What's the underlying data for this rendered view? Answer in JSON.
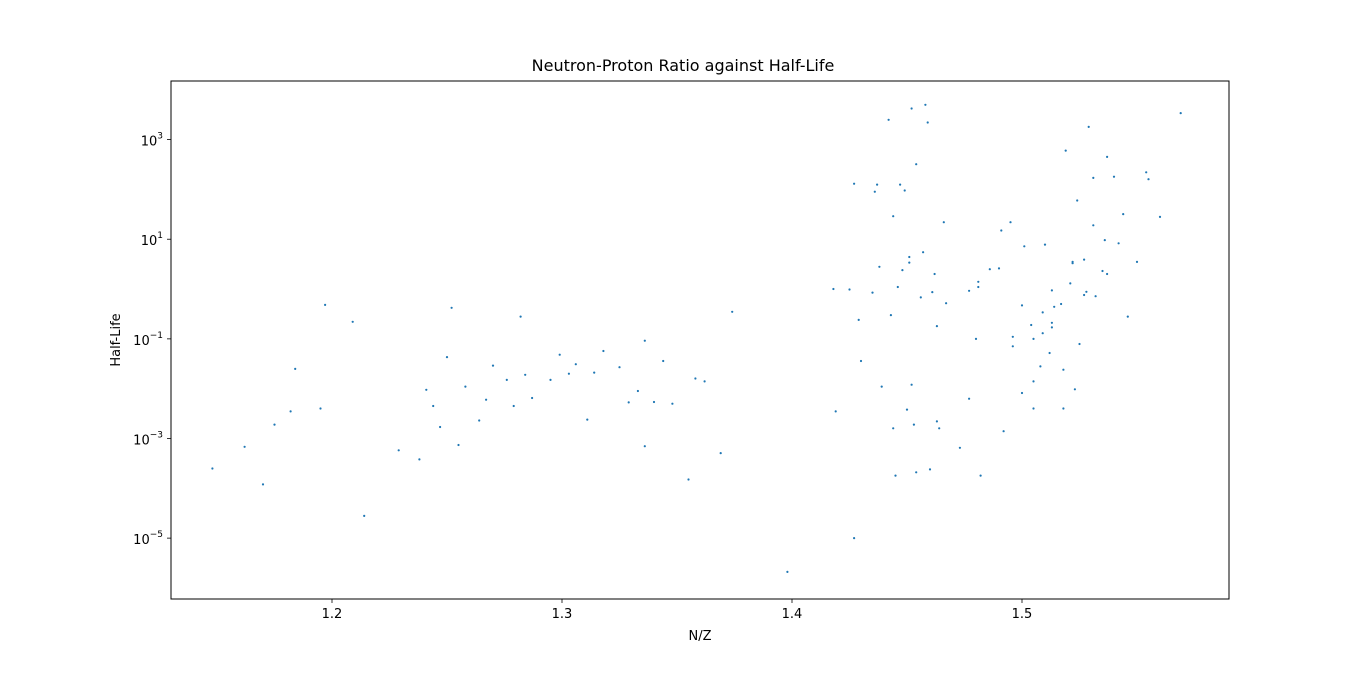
{
  "chart_data": {
    "type": "scatter",
    "title": "Neutron-Proton Ratio against Half-Life",
    "xlabel": "N/Z",
    "ylabel": "Half-Life",
    "xlim": [
      1.13,
      1.59
    ],
    "ylim": [
      6e-07,
      15000
    ],
    "y_scale": "log",
    "grid": false,
    "x_ticks": [
      {
        "value": 1.2,
        "label": "1.2"
      },
      {
        "value": 1.3,
        "label": "1.3"
      },
      {
        "value": 1.4,
        "label": "1.4"
      },
      {
        "value": 1.5,
        "label": "1.5"
      }
    ],
    "y_ticks": [
      {
        "value": 1e-05,
        "base": "10",
        "exp": "−5"
      },
      {
        "value": 0.001,
        "base": "10",
        "exp": "−3"
      },
      {
        "value": 0.1,
        "base": "10",
        "exp": "−1"
      },
      {
        "value": 10,
        "base": "10",
        "exp": "1"
      },
      {
        "value": 1000,
        "base": "10",
        "exp": "3"
      }
    ],
    "marker_color": "#1f77b4",
    "points": [
      [
        1.148,
        0.00025
      ],
      [
        1.162,
        0.00068
      ],
      [
        1.17,
        0.00012
      ],
      [
        1.175,
        0.0019
      ],
      [
        1.182,
        0.0035
      ],
      [
        1.184,
        0.025
      ],
      [
        1.195,
        0.004
      ],
      [
        1.197,
        0.48
      ],
      [
        1.209,
        0.22
      ],
      [
        1.214,
        2.8e-05
      ],
      [
        1.229,
        0.00058
      ],
      [
        1.238,
        0.00038
      ],
      [
        1.241,
        0.0095
      ],
      [
        1.244,
        0.0045
      ],
      [
        1.247,
        0.0017
      ],
      [
        1.25,
        0.043
      ],
      [
        1.252,
        0.42
      ],
      [
        1.255,
        0.00074
      ],
      [
        1.258,
        0.011
      ],
      [
        1.264,
        0.0023
      ],
      [
        1.267,
        0.006
      ],
      [
        1.27,
        0.029
      ],
      [
        1.276,
        0.015
      ],
      [
        1.279,
        0.0045
      ],
      [
        1.282,
        0.28
      ],
      [
        1.284,
        0.019
      ],
      [
        1.287,
        0.0065
      ],
      [
        1.295,
        0.015
      ],
      [
        1.299,
        0.048
      ],
      [
        1.303,
        0.02
      ],
      [
        1.306,
        0.031
      ],
      [
        1.311,
        0.0024
      ],
      [
        1.314,
        0.021
      ],
      [
        1.318,
        0.057
      ],
      [
        1.325,
        0.027
      ],
      [
        1.329,
        0.0053
      ],
      [
        1.333,
        0.009
      ],
      [
        1.336,
        0.0007
      ],
      [
        1.336,
        0.092
      ],
      [
        1.34,
        0.0054
      ],
      [
        1.344,
        0.036
      ],
      [
        1.348,
        0.005
      ],
      [
        1.355,
        0.00015
      ],
      [
        1.358,
        0.016
      ],
      [
        1.362,
        0.014
      ],
      [
        1.369,
        0.00051
      ],
      [
        1.374,
        0.35
      ],
      [
        1.398,
        2.1e-06
      ],
      [
        1.418,
        1.0
      ],
      [
        1.419,
        0.0035
      ],
      [
        1.425,
        0.98
      ],
      [
        1.427,
        1e-05
      ],
      [
        1.427,
        130
      ],
      [
        1.429,
        0.24
      ],
      [
        1.43,
        0.036
      ],
      [
        1.435,
        0.85
      ],
      [
        1.436,
        90
      ],
      [
        1.437,
        125
      ],
      [
        1.438,
        2.8
      ],
      [
        1.439,
        0.011
      ],
      [
        1.442,
        2500
      ],
      [
        1.443,
        0.3
      ],
      [
        1.444,
        29
      ],
      [
        1.444,
        0.0016
      ],
      [
        1.445,
        0.00018
      ],
      [
        1.446,
        1.1
      ],
      [
        1.447,
        125
      ],
      [
        1.448,
        2.4
      ],
      [
        1.449,
        95
      ],
      [
        1.45,
        0.0038
      ],
      [
        1.451,
        3.4
      ],
      [
        1.451,
        4.4
      ],
      [
        1.452,
        0.012
      ],
      [
        1.452,
        4200
      ],
      [
        1.453,
        0.0019
      ],
      [
        1.454,
        0.00021
      ],
      [
        1.454,
        320
      ],
      [
        1.456,
        0.68
      ],
      [
        1.457,
        5.5
      ],
      [
        1.458,
        5000
      ],
      [
        1.459,
        2200
      ],
      [
        1.46,
        0.00024
      ],
      [
        1.461,
        0.87
      ],
      [
        1.462,
        2.0
      ],
      [
        1.463,
        0.18
      ],
      [
        1.463,
        0.0022
      ],
      [
        1.464,
        0.0016
      ],
      [
        1.466,
        22
      ],
      [
        1.467,
        0.52
      ],
      [
        1.473,
        0.00065
      ],
      [
        1.477,
        0.0063
      ],
      [
        1.477,
        0.92
      ],
      [
        1.48,
        0.1
      ],
      [
        1.481,
        1.1
      ],
      [
        1.481,
        1.4
      ],
      [
        1.482,
        0.00018
      ],
      [
        1.486,
        2.5
      ],
      [
        1.49,
        2.6
      ],
      [
        1.491,
        15
      ],
      [
        1.492,
        0.0014
      ],
      [
        1.495,
        22
      ],
      [
        1.496,
        0.071
      ],
      [
        1.496,
        0.11
      ],
      [
        1.5,
        0.0082
      ],
      [
        1.5,
        0.47
      ],
      [
        1.501,
        7.2
      ],
      [
        1.504,
        0.19
      ],
      [
        1.505,
        0.014
      ],
      [
        1.505,
        0.004
      ],
      [
        1.505,
        0.1
      ],
      [
        1.508,
        0.028
      ],
      [
        1.509,
        0.34
      ],
      [
        1.509,
        0.13
      ],
      [
        1.51,
        7.8
      ],
      [
        1.512,
        0.052
      ],
      [
        1.513,
        0.21
      ],
      [
        1.513,
        0.17
      ],
      [
        1.513,
        0.94
      ],
      [
        1.514,
        0.44
      ],
      [
        1.517,
        0.5
      ],
      [
        1.518,
        0.024
      ],
      [
        1.518,
        0.004
      ],
      [
        1.519,
        600
      ],
      [
        1.521,
        1.3
      ],
      [
        1.522,
        3.3
      ],
      [
        1.522,
        3.5
      ],
      [
        1.523,
        0.0097
      ],
      [
        1.524,
        60
      ],
      [
        1.525,
        0.079
      ],
      [
        1.527,
        0.76
      ],
      [
        1.527,
        3.9
      ],
      [
        1.528,
        0.88
      ],
      [
        1.529,
        1800
      ],
      [
        1.531,
        19
      ],
      [
        1.531,
        170
      ],
      [
        1.532,
        0.72
      ],
      [
        1.535,
        2.3
      ],
      [
        1.536,
        9.6
      ],
      [
        1.537,
        2.0
      ],
      [
        1.537,
        450
      ],
      [
        1.54,
        180
      ],
      [
        1.542,
        8.3
      ],
      [
        1.544,
        32
      ],
      [
        1.546,
        0.28
      ],
      [
        1.55,
        3.5
      ],
      [
        1.554,
        220
      ],
      [
        1.555,
        160
      ],
      [
        1.56,
        28
      ],
      [
        1.569,
        3400
      ]
    ]
  }
}
